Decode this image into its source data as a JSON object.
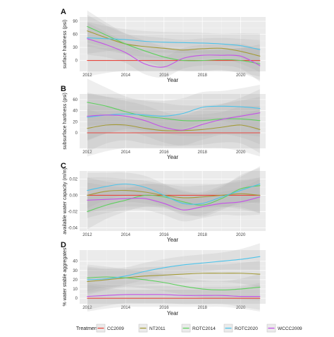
{
  "legend": {
    "title": "Treatment",
    "series_names": [
      "CC2009",
      "NT2011",
      "ROTC2014",
      "ROTC2020",
      "WCCC2009"
    ]
  },
  "colors": {
    "CC2009": "#e8473f",
    "NT2011": "#a39a36",
    "ROTC2014": "#5ed05e",
    "ROTC2020": "#4cc3ea",
    "WCCC2009": "#c452e8",
    "ribbon": "#a8a8a8",
    "panel_bg": "#ebebeb",
    "grid": "#ffffff"
  },
  "chart_data": [
    {
      "panel": "A",
      "type": "line",
      "xlabel": "Year",
      "ylabel": "surface hardness (psi)",
      "xlim": [
        2011.6,
        2021.3
      ],
      "ylim": [
        -25,
        100
      ],
      "x_ticks": [
        2012,
        2014,
        2016,
        2018,
        2020
      ],
      "y_ticks": [
        0,
        30,
        60,
        90
      ],
      "grid": true,
      "series": [
        {
          "name": "CC2009",
          "x": [
            2012,
            2013,
            2014,
            2015,
            2016,
            2017,
            2018,
            2019,
            2020,
            2021
          ],
          "y": [
            0,
            0,
            0,
            0,
            0,
            0,
            0,
            0,
            0,
            0
          ]
        },
        {
          "name": "NT2011",
          "x": [
            2012,
            2013,
            2014,
            2015,
            2016,
            2017,
            2018,
            2019,
            2020,
            2021
          ],
          "y": [
            68,
            52,
            38,
            32,
            28,
            24,
            27,
            28,
            21,
            10
          ]
        },
        {
          "name": "ROTC2014",
          "x": [
            2012,
            2013,
            2014,
            2015,
            2016,
            2017,
            2018,
            2019,
            2020,
            2021
          ],
          "y": [
            78,
            58,
            38,
            22,
            8,
            0,
            0,
            2,
            0,
            -8
          ]
        },
        {
          "name": "ROTC2020",
          "x": [
            2012,
            2013,
            2014,
            2015,
            2016,
            2017,
            2018,
            2019,
            2020,
            2021
          ],
          "y": [
            52,
            50,
            48,
            44,
            42,
            41,
            40,
            38,
            34,
            25
          ]
        },
        {
          "name": "WCCC2009",
          "x": [
            2012,
            2013,
            2014,
            2015,
            2016,
            2017,
            2018,
            2019,
            2020,
            2021
          ],
          "y": [
            50,
            36,
            18,
            -8,
            -15,
            5,
            12,
            12,
            10,
            -12
          ]
        }
      ]
    },
    {
      "panel": "B",
      "type": "line",
      "xlabel": "Year",
      "ylabel": "subsurface hardness (psi)",
      "xlim": [
        2011.6,
        2021.3
      ],
      "ylim": [
        -28,
        70
      ],
      "x_ticks": [
        2012,
        2014,
        2016,
        2018,
        2020
      ],
      "y_ticks": [
        0,
        20,
        40,
        60
      ],
      "grid": true,
      "series": [
        {
          "name": "CC2009",
          "x": [
            2012,
            2013,
            2014,
            2015,
            2016,
            2017,
            2018,
            2019,
            2020,
            2021
          ],
          "y": [
            0,
            0,
            0,
            0,
            0,
            0,
            0,
            0,
            0,
            0
          ]
        },
        {
          "name": "NT2011",
          "x": [
            2012,
            2013,
            2014,
            2015,
            2016,
            2017,
            2018,
            2019,
            2020,
            2021
          ],
          "y": [
            8,
            14,
            14,
            8,
            4,
            4,
            6,
            10,
            14,
            6
          ]
        },
        {
          "name": "ROTC2014",
          "x": [
            2012,
            2013,
            2014,
            2015,
            2016,
            2017,
            2018,
            2019,
            2020,
            2021
          ],
          "y": [
            55,
            48,
            38,
            30,
            26,
            22,
            22,
            25,
            25,
            22
          ]
        },
        {
          "name": "ROTC2020",
          "x": [
            2012,
            2013,
            2014,
            2015,
            2016,
            2017,
            2018,
            2019,
            2020,
            2021
          ],
          "y": [
            28,
            32,
            34,
            32,
            30,
            35,
            46,
            48,
            47,
            44
          ]
        },
        {
          "name": "WCCC2009",
          "x": [
            2012,
            2013,
            2014,
            2015,
            2016,
            2017,
            2018,
            2019,
            2020,
            2021
          ],
          "y": [
            30,
            32,
            30,
            22,
            10,
            5,
            15,
            24,
            30,
            36
          ]
        }
      ]
    },
    {
      "panel": "C",
      "type": "line",
      "xlabel": "Year",
      "ylabel": "available water capacity (m/m)",
      "xlim": [
        2011.6,
        2021.3
      ],
      "ylim": [
        -0.044,
        0.03
      ],
      "x_ticks": [
        2012,
        2014,
        2016,
        2018,
        2020
      ],
      "y_ticks": [
        -0.04,
        -0.02,
        0.0,
        0.02
      ],
      "y_tick_labels": [
        "-0.04",
        "-0.02",
        "0.00",
        "0.02"
      ],
      "grid": true,
      "series": [
        {
          "name": "CC2009",
          "x": [
            2012,
            2013,
            2014,
            2015,
            2016,
            2017,
            2018,
            2019,
            2020,
            2021
          ],
          "y": [
            0,
            0,
            0,
            0,
            0,
            0,
            0,
            0,
            0,
            0
          ]
        },
        {
          "name": "NT2011",
          "x": [
            2012,
            2013,
            2014,
            2015,
            2016,
            2017,
            2018,
            2019,
            2020,
            2021
          ],
          "y": [
            0.0,
            0.005,
            0.006,
            0.004,
            0.0,
            -0.003,
            -0.002,
            0.0,
            0.002,
            0.0
          ]
        },
        {
          "name": "ROTC2014",
          "x": [
            2012,
            2013,
            2014,
            2015,
            2016,
            2017,
            2018,
            2019,
            2020,
            2021
          ],
          "y": [
            -0.02,
            -0.012,
            -0.006,
            0.0,
            -0.002,
            -0.008,
            -0.012,
            -0.004,
            0.008,
            0.012
          ]
        },
        {
          "name": "ROTC2020",
          "x": [
            2012,
            2013,
            2014,
            2015,
            2016,
            2017,
            2018,
            2019,
            2020,
            2021
          ],
          "y": [
            0.006,
            0.011,
            0.014,
            0.01,
            0.0,
            -0.01,
            -0.01,
            -0.002,
            0.006,
            0.014
          ]
        },
        {
          "name": "WCCC2009",
          "x": [
            2012,
            2013,
            2014,
            2015,
            2016,
            2017,
            2018,
            2019,
            2020,
            2021
          ],
          "y": [
            -0.006,
            -0.005,
            -0.004,
            -0.004,
            -0.01,
            -0.018,
            -0.014,
            -0.01,
            -0.008,
            -0.002
          ]
        }
      ]
    },
    {
      "panel": "D",
      "type": "line",
      "xlabel": "Year",
      "ylabel": "% water stable aggregates",
      "xlim": [
        2011.6,
        2021.3
      ],
      "ylim": [
        -6,
        52
      ],
      "x_ticks": [
        2012,
        2014,
        2016,
        2018,
        2020
      ],
      "y_ticks": [
        0,
        10,
        20,
        30,
        40
      ],
      "grid": true,
      "series": [
        {
          "name": "CC2009",
          "x": [
            2012,
            2013,
            2014,
            2015,
            2016,
            2017,
            2018,
            2019,
            2020,
            2021
          ],
          "y": [
            0,
            0,
            0,
            0,
            0,
            0,
            0,
            0,
            0,
            0
          ]
        },
        {
          "name": "NT2011",
          "x": [
            2012,
            2013,
            2014,
            2015,
            2016,
            2017,
            2018,
            2019,
            2020,
            2021
          ],
          "y": [
            18,
            20,
            22,
            24,
            25,
            26,
            27,
            27,
            27,
            26
          ]
        },
        {
          "name": "ROTC2014",
          "x": [
            2012,
            2013,
            2014,
            2015,
            2016,
            2017,
            2018,
            2019,
            2020,
            2021
          ],
          "y": [
            22,
            23,
            22,
            20,
            17,
            13,
            10,
            9,
            10,
            12
          ]
        },
        {
          "name": "ROTC2020",
          "x": [
            2012,
            2013,
            2014,
            2015,
            2016,
            2017,
            2018,
            2019,
            2020,
            2021
          ],
          "y": [
            20,
            21,
            24,
            29,
            33,
            36,
            38,
            40,
            42,
            45
          ]
        },
        {
          "name": "WCCC2009",
          "x": [
            2012,
            2013,
            2014,
            2015,
            2016,
            2017,
            2018,
            2019,
            2020,
            2021
          ],
          "y": [
            2,
            3,
            4,
            4,
            4,
            3,
            3,
            3,
            2,
            2
          ]
        }
      ]
    }
  ]
}
